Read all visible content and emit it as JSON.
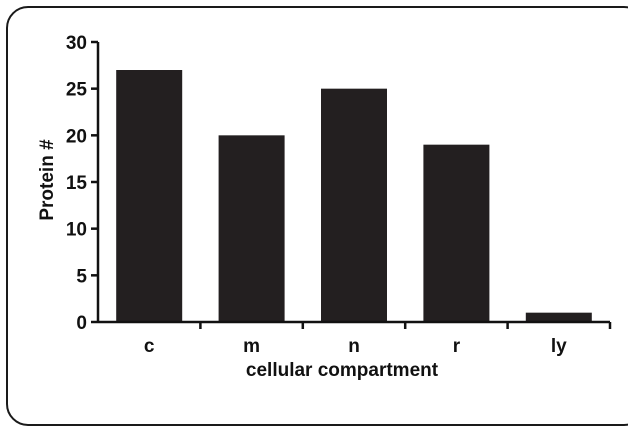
{
  "chart_data": {
    "type": "bar",
    "categories": [
      "c",
      "m",
      "n",
      "r",
      "ly"
    ],
    "values": [
      27,
      20,
      25,
      19,
      1
    ],
    "title": "",
    "xlabel": "cellular compartment",
    "ylabel": "Protein #",
    "ylim": [
      0,
      30
    ],
    "yticks": [
      0,
      5,
      10,
      15,
      20,
      25,
      30
    ],
    "bar_color": "#231f20",
    "grid": false,
    "legend": "none"
  }
}
